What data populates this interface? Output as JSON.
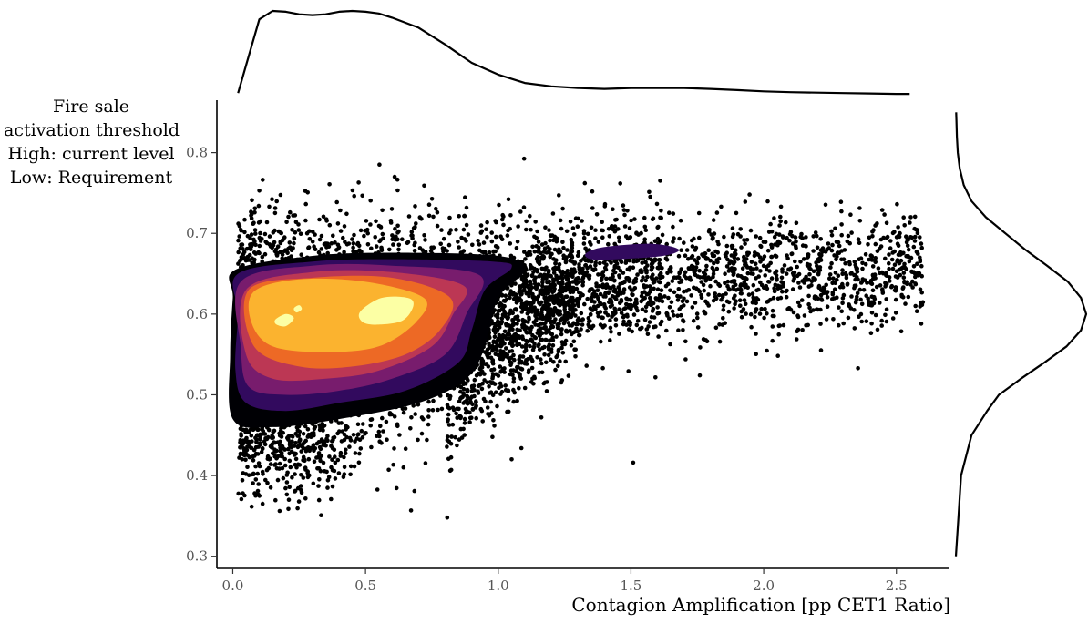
{
  "chart_data": {
    "type": "scatter",
    "title": "",
    "xlabel": "Contagion Amplification [pp CET1 Ratio]",
    "ylabel_lines": [
      "Fire sale",
      "activation threshold",
      "High: current level",
      "Low: Requirement"
    ],
    "xlim": [
      -0.06,
      2.7
    ],
    "ylim": [
      0.285,
      0.865
    ],
    "xticks": [
      0.0,
      0.5,
      1.0,
      1.5,
      2.0,
      2.5
    ],
    "xtick_labels": [
      "0.0",
      "0.5",
      "1.0",
      "1.5",
      "2.0",
      "2.5"
    ],
    "yticks": [
      0.3,
      0.4,
      0.5,
      0.6,
      0.7,
      0.8
    ],
    "ytick_labels": [
      "0.3",
      "0.4",
      "0.5",
      "0.6",
      "0.7",
      "0.8"
    ],
    "grid": false,
    "legend": "none",
    "point_color": "#000000",
    "density_colors": [
      "#000004",
      "#320a5e",
      "#781c6d",
      "#bc3754",
      "#ed6925",
      "#fbb32f",
      "#fcffa4"
    ],
    "density_contours": [
      {
        "level": 1,
        "color": "#320a5e",
        "outline": [
          [
            0.02,
            0.65
          ],
          [
            0.3,
            0.665
          ],
          [
            0.6,
            0.668
          ],
          [
            0.98,
            0.665
          ],
          [
            1.05,
            0.657
          ],
          [
            0.95,
            0.63
          ],
          [
            0.9,
            0.58
          ],
          [
            0.85,
            0.54
          ],
          [
            0.65,
            0.505
          ],
          [
            0.4,
            0.49
          ],
          [
            0.2,
            0.48
          ],
          [
            0.05,
            0.49
          ],
          [
            0.01,
            0.53
          ],
          [
            0.02,
            0.6
          ]
        ]
      },
      {
        "level": 1,
        "color": "#320a5e",
        "outline": [
          [
            1.33,
            0.675
          ],
          [
            1.4,
            0.683
          ],
          [
            1.58,
            0.687
          ],
          [
            1.68,
            0.68
          ],
          [
            1.62,
            0.672
          ],
          [
            1.45,
            0.668
          ],
          [
            1.35,
            0.668
          ]
        ]
      },
      {
        "level": 2,
        "color": "#781c6d",
        "outline": [
          [
            0.03,
            0.64
          ],
          [
            0.3,
            0.66
          ],
          [
            0.6,
            0.66
          ],
          [
            0.93,
            0.648
          ],
          [
            0.88,
            0.6
          ],
          [
            0.8,
            0.55
          ],
          [
            0.6,
            0.52
          ],
          [
            0.4,
            0.505
          ],
          [
            0.2,
            0.5
          ],
          [
            0.06,
            0.51
          ],
          [
            0.03,
            0.56
          ]
        ]
      },
      {
        "level": 3,
        "color": "#bc3754",
        "outline": [
          [
            0.05,
            0.63
          ],
          [
            0.3,
            0.652
          ],
          [
            0.6,
            0.652
          ],
          [
            0.87,
            0.635
          ],
          [
            0.83,
            0.6
          ],
          [
            0.75,
            0.56
          ],
          [
            0.55,
            0.53
          ],
          [
            0.35,
            0.52
          ],
          [
            0.15,
            0.52
          ],
          [
            0.05,
            0.55
          ]
        ]
      },
      {
        "level": 4,
        "color": "#ed6925",
        "outline": [
          [
            0.06,
            0.63
          ],
          [
            0.3,
            0.645
          ],
          [
            0.6,
            0.645
          ],
          [
            0.82,
            0.62
          ],
          [
            0.78,
            0.58
          ],
          [
            0.65,
            0.55
          ],
          [
            0.45,
            0.535
          ],
          [
            0.25,
            0.535
          ],
          [
            0.08,
            0.56
          ]
        ]
      },
      {
        "level": 5,
        "color": "#fbb32f",
        "outline": [
          [
            0.08,
            0.628
          ],
          [
            0.25,
            0.643
          ],
          [
            0.5,
            0.64
          ],
          [
            0.72,
            0.62
          ],
          [
            0.69,
            0.59
          ],
          [
            0.55,
            0.56
          ],
          [
            0.35,
            0.553
          ],
          [
            0.15,
            0.56
          ],
          [
            0.07,
            0.59
          ]
        ]
      },
      {
        "level": 6,
        "color": "#fcffa4",
        "outline": [
          [
            0.48,
            0.603
          ],
          [
            0.56,
            0.62
          ],
          [
            0.66,
            0.62
          ],
          [
            0.68,
            0.61
          ],
          [
            0.64,
            0.592
          ],
          [
            0.55,
            0.587
          ],
          [
            0.49,
            0.59
          ]
        ]
      },
      {
        "level": 6,
        "color": "#fcffa4",
        "outline": [
          [
            0.16,
            0.593
          ],
          [
            0.2,
            0.6
          ],
          [
            0.23,
            0.595
          ],
          [
            0.2,
            0.585
          ],
          [
            0.165,
            0.587
          ]
        ]
      },
      {
        "level": 6,
        "color": "#fcffa4",
        "outline": [
          [
            0.23,
            0.607
          ],
          [
            0.25,
            0.611
          ],
          [
            0.26,
            0.606
          ],
          [
            0.24,
            0.602
          ]
        ]
      }
    ],
    "marginal_x_density": {
      "x": [
        0.02,
        0.05,
        0.1,
        0.15,
        0.2,
        0.25,
        0.3,
        0.35,
        0.4,
        0.45,
        0.5,
        0.55,
        0.6,
        0.7,
        0.8,
        0.9,
        1.0,
        1.1,
        1.2,
        1.3,
        1.4,
        1.5,
        1.6,
        1.7,
        1.8,
        1.9,
        2.0,
        2.1,
        2.2,
        2.3,
        2.4,
        2.5,
        2.55
      ],
      "density": [
        0.02,
        0.35,
        0.9,
        1.0,
        0.99,
        0.96,
        0.95,
        0.96,
        0.99,
        1.0,
        0.99,
        0.97,
        0.92,
        0.8,
        0.6,
        0.38,
        0.24,
        0.14,
        0.1,
        0.08,
        0.07,
        0.08,
        0.08,
        0.08,
        0.07,
        0.055,
        0.04,
        0.03,
        0.025,
        0.02,
        0.015,
        0.01,
        0.01
      ]
    },
    "marginal_y_density": {
      "y": [
        0.3,
        0.35,
        0.4,
        0.45,
        0.48,
        0.5,
        0.52,
        0.54,
        0.56,
        0.58,
        0.6,
        0.62,
        0.64,
        0.66,
        0.68,
        0.7,
        0.72,
        0.74,
        0.76,
        0.78,
        0.8,
        0.82,
        0.84,
        0.85
      ],
      "density": [
        0.0,
        0.02,
        0.04,
        0.12,
        0.24,
        0.33,
        0.5,
        0.68,
        0.85,
        0.96,
        1.0,
        0.96,
        0.86,
        0.7,
        0.53,
        0.38,
        0.23,
        0.12,
        0.06,
        0.03,
        0.015,
        0.008,
        0.004,
        0.002
      ]
    }
  }
}
